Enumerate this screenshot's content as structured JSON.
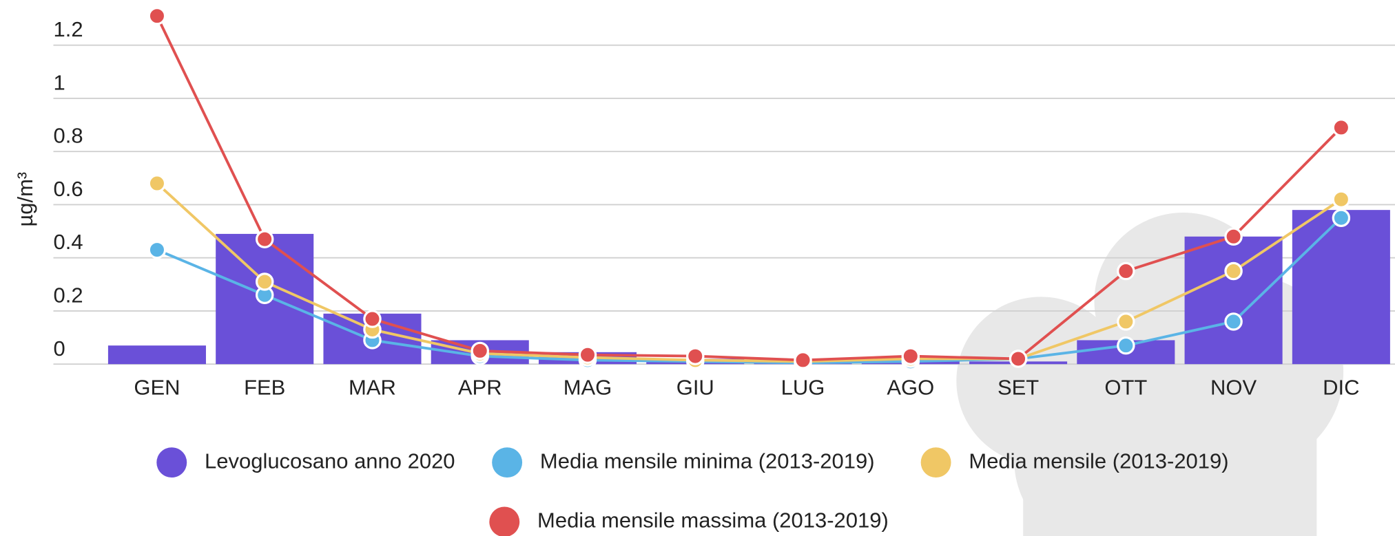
{
  "chart_data": {
    "type": "bar-line",
    "y_label": "µg/m³",
    "categories": [
      "GEN",
      "FEB",
      "MAR",
      "APR",
      "MAG",
      "GIU",
      "LUG",
      "AGO",
      "SET",
      "OTT",
      "NOV",
      "DIC"
    ],
    "ylim": [
      0,
      1.37
    ],
    "yticks": [
      0,
      0.2,
      0.4,
      0.6,
      0.8,
      1,
      1.2
    ],
    "grid": true,
    "legend": "bottom",
    "series": [
      {
        "name": "Levoglucosano anno 2020",
        "kind": "bar",
        "color": "#6a50d8",
        "values": [
          0.07,
          0.49,
          0.19,
          0.09,
          0.045,
          0.02,
          0.005,
          0.01,
          0.01,
          0.09,
          0.48,
          0.58
        ]
      },
      {
        "name": "Media mensile minima (2013-2019)",
        "kind": "line",
        "color": "#5ab4e6",
        "values": [
          0.43,
          0.26,
          0.09,
          0.03,
          0.015,
          0.01,
          0.005,
          0.01,
          0.02,
          0.07,
          0.16,
          0.55
        ]
      },
      {
        "name": "Media mensile (2013-2019)",
        "kind": "line",
        "color": "#f0c765",
        "values": [
          0.68,
          0.31,
          0.13,
          0.04,
          0.025,
          0.015,
          0.01,
          0.02,
          0.02,
          0.16,
          0.35,
          0.62
        ]
      },
      {
        "name": "Media mensile massima (2013-2019)",
        "kind": "line",
        "color": "#e05050",
        "values": [
          1.31,
          0.47,
          0.17,
          0.05,
          0.035,
          0.03,
          0.015,
          0.03,
          0.02,
          0.35,
          0.48,
          0.89
        ]
      }
    ]
  }
}
